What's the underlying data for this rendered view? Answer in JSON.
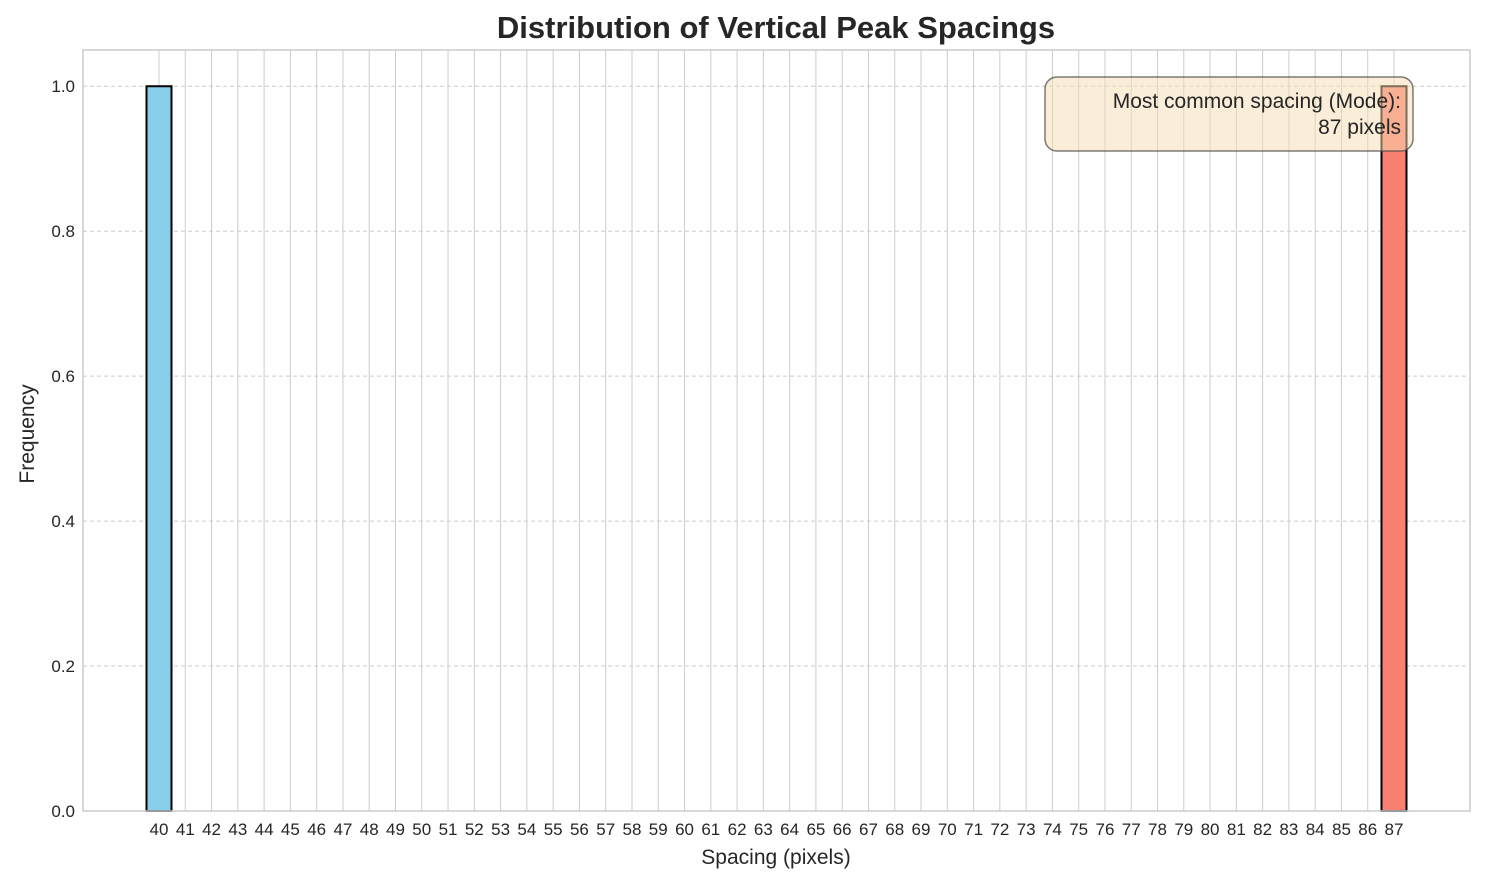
{
  "chart_data": {
    "type": "bar",
    "title": "Distribution of Vertical Peak Spacings",
    "xlabel": "Spacing (pixels)",
    "ylabel": "Frequency",
    "categories": [
      "40",
      "41",
      "42",
      "43",
      "44",
      "45",
      "46",
      "47",
      "48",
      "49",
      "50",
      "51",
      "52",
      "53",
      "54",
      "55",
      "56",
      "57",
      "58",
      "59",
      "60",
      "61",
      "62",
      "63",
      "64",
      "65",
      "66",
      "67",
      "68",
      "69",
      "70",
      "71",
      "72",
      "73",
      "74",
      "75",
      "76",
      "77",
      "78",
      "79",
      "80",
      "81",
      "82",
      "83",
      "84",
      "85",
      "86",
      "87"
    ],
    "values": [
      1,
      0,
      0,
      0,
      0,
      0,
      0,
      0,
      0,
      0,
      0,
      0,
      0,
      0,
      0,
      0,
      0,
      0,
      0,
      0,
      0,
      0,
      0,
      0,
      0,
      0,
      0,
      0,
      0,
      0,
      0,
      0,
      0,
      0,
      0,
      0,
      0,
      0,
      0,
      0,
      0,
      0,
      0,
      0,
      0,
      0,
      0,
      1
    ],
    "highlight_category": "87",
    "ylim": [
      0,
      1.05
    ],
    "yticks": [
      "0.0",
      "0.2",
      "0.4",
      "0.6",
      "0.8",
      "1.0"
    ],
    "grid": true,
    "colors": {
      "bar": "#87ceeb",
      "highlight": "#fa8072",
      "edge": "#000000",
      "grid": "#cccccc",
      "annotation_bg": "#f5deb3"
    },
    "annotation": {
      "line1": "Most common spacing (Mode):",
      "line2": "87 pixels",
      "placement": "top-right"
    }
  }
}
